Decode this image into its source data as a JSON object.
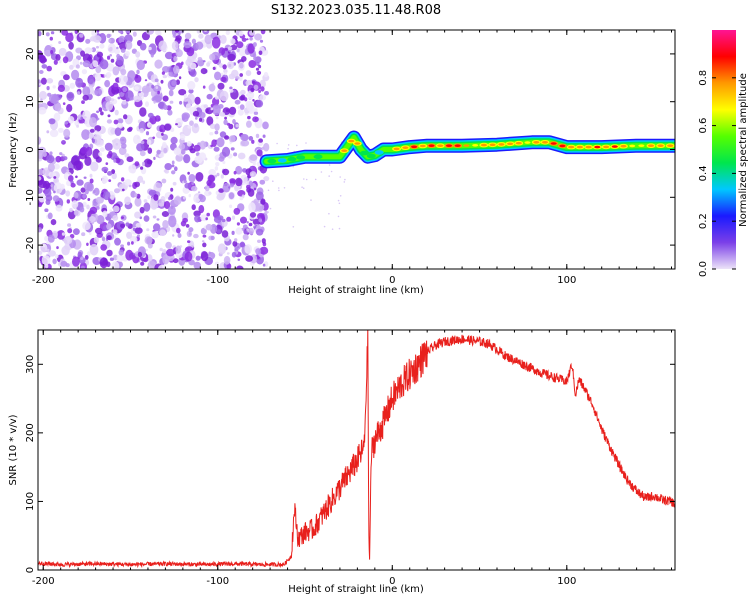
{
  "title": "S132.2023.035.11.48.R08",
  "colors": {
    "snr_line": "#e8201c",
    "frame": "#000000",
    "spectrogram_noise": "#8a2be2",
    "colorbar_stops": [
      "#ece3f8",
      "#7b3fe8",
      "#1a1aff",
      "#00c8ff",
      "#00e64d",
      "#55ff00",
      "#ffff00",
      "#ff9900",
      "#ff0000",
      "#ff1493"
    ]
  },
  "chart_data": [
    {
      "type": "heatmap",
      "name": "spectrogram",
      "xlabel": "Height of straight line (km)",
      "ylabel": "Frequency (Hz)",
      "xlim": [
        -203,
        162
      ],
      "ylim": [
        -25,
        25
      ],
      "xticks": [
        -200,
        -100,
        0,
        100
      ],
      "yticks": [
        -20,
        -10,
        0,
        10,
        20
      ],
      "noise_region_x": [
        -203,
        -72
      ],
      "signal_track": {
        "x": [
          -72,
          -60,
          -50,
          -40,
          -30,
          -25,
          -22,
          -18,
          -14,
          -10,
          -5,
          0,
          10,
          20,
          40,
          60,
          80,
          90,
          100,
          120,
          140,
          162
        ],
        "y": [
          -2.5,
          -2.2,
          -1.5,
          -1.5,
          -1.5,
          1,
          2.5,
          0,
          -1.5,
          -1.2,
          0,
          0,
          0.5,
          0.8,
          0.8,
          1,
          1.5,
          1.5,
          0.5,
          0.5,
          0.8,
          0.8
        ],
        "amplitude": [
          0.45,
          0.55,
          0.6,
          0.65,
          0.7,
          0.75,
          0.9,
          0.6,
          0.65,
          0.6,
          0.55,
          0.85,
          0.85,
          0.9,
          0.88,
          0.75,
          0.9,
          0.88,
          0.85,
          0.8,
          0.82,
          0.8
        ]
      },
      "colorbar": {
        "label": "Normalized spectral amplitude",
        "range": [
          0,
          1
        ],
        "ticks": [
          0.0,
          0.2,
          0.4,
          0.6,
          0.8
        ],
        "tick_labels": [
          "0.0",
          "0.2",
          "0.4",
          "0.6",
          "0.8"
        ]
      }
    },
    {
      "type": "line",
      "name": "snr",
      "xlabel": "Height of straight line (km)",
      "ylabel": "SNR (10 * v/v)",
      "xlim": [
        -203,
        162
      ],
      "ylim": [
        0,
        350
      ],
      "xticks": [
        -200,
        -100,
        0,
        100
      ],
      "yticks": [
        0,
        100,
        200,
        300
      ],
      "series": [
        {
          "name": "SNR",
          "x": [
            -203,
            -190,
            -170,
            -150,
            -130,
            -110,
            -90,
            -75,
            -62,
            -58,
            -56,
            -54,
            -50,
            -45,
            -40,
            -35,
            -30,
            -25,
            -20,
            -16,
            -14,
            -13.5,
            -13,
            -12,
            -10,
            -5,
            0,
            5,
            10,
            15,
            20,
            25,
            30,
            35,
            40,
            45,
            50,
            55,
            60,
            65,
            70,
            75,
            80,
            85,
            90,
            95,
            100,
            103,
            105,
            107,
            110,
            115,
            120,
            125,
            130,
            135,
            140,
            145,
            150,
            155,
            160,
            162
          ],
          "y": [
            10,
            8,
            9,
            8,
            9,
            8,
            9,
            8,
            8,
            20,
            90,
            45,
            55,
            60,
            80,
            100,
            120,
            140,
            160,
            180,
            340,
            60,
            15,
            170,
            190,
            215,
            250,
            270,
            285,
            300,
            318,
            328,
            333,
            335,
            337,
            335,
            333,
            330,
            322,
            312,
            306,
            300,
            294,
            288,
            283,
            279,
            275,
            300,
            255,
            278,
            265,
            240,
            205,
            178,
            152,
            130,
            115,
            105,
            108,
            102,
            100,
            95
          ]
        }
      ]
    }
  ]
}
